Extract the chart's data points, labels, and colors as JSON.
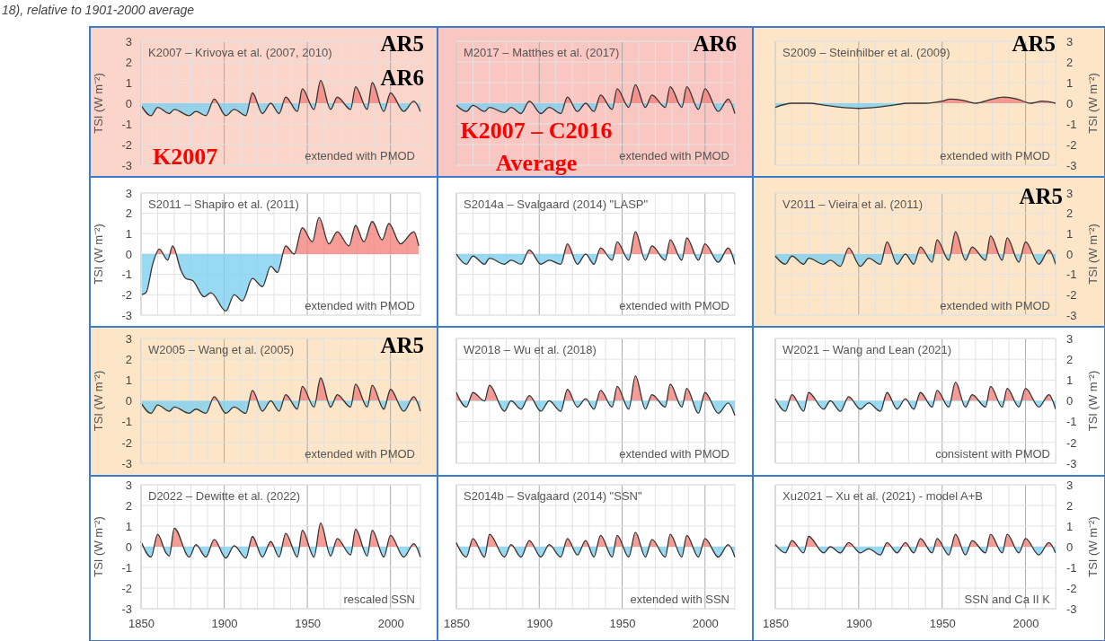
{
  "chart_data": [
    {
      "type": "area",
      "title": "K2007 – Krivova et al. (2007, 2010)",
      "subtitle": "18), relative to 1901-2000 average",
      "ylabel": "TSI (W m⁻²)",
      "annotations": [
        "extended with PMOD",
        "AR5",
        "AR6",
        "K2007"
      ],
      "bands": [
        {
          "axis": "x",
          "from": 1850,
          "to": 2018,
          "color": "#fbd5c9"
        }
      ],
      "x": [
        1850,
        1856,
        1860,
        1867,
        1870,
        1879,
        1883,
        1889,
        1894,
        1901,
        1906,
        1913,
        1917,
        1923,
        1928,
        1933,
        1937,
        1944,
        1947,
        1954,
        1958,
        1964,
        1968,
        1976,
        1979,
        1986,
        1989,
        1996,
        2000,
        2008,
        2014,
        2018
      ],
      "colors": [
        "#f4847e",
        "#7fd0f0"
      ],
      "series": [
        {
          "color": "#333333",
          "values": [
            -0.1,
            -0.6,
            -0.2,
            -0.5,
            -0.3,
            -0.6,
            -0.4,
            -0.6,
            0.2,
            -0.6,
            -0.3,
            -0.6,
            0.5,
            -0.5,
            0.0,
            -0.5,
            0.3,
            -0.4,
            0.7,
            -0.3,
            1.1,
            -0.3,
            0.3,
            -0.3,
            0.8,
            -0.3,
            1.0,
            -0.4,
            0.5,
            -0.4,
            0.1,
            -0.4
          ]
        }
      ],
      "xlim": [
        1850,
        2018
      ],
      "xticks": [
        1850,
        {
          "value": 1860,
          "label": null
        },
        {
          "value": 1870,
          "label": null
        },
        {
          "value": 1880,
          "label": null
        },
        {
          "value": 1890,
          "label": null
        },
        1900,
        {
          "value": 1910,
          "label": null
        },
        {
          "value": 1920,
          "label": null
        },
        {
          "value": 1930,
          "label": null
        },
        {
          "value": 1940,
          "label": null
        },
        1950,
        {
          "value": 1960,
          "label": null
        },
        {
          "value": 1970,
          "label": null
        },
        {
          "value": 1980,
          "label": null
        },
        {
          "value": 1990,
          "label": null
        },
        2000,
        {
          "value": 2010,
          "label": null
        }
      ],
      "ylim": [
        -3,
        3
      ],
      "yticks": [
        -3,
        -2,
        -1,
        0,
        1,
        2,
        3
      ],
      "grid": true,
      "tick_labels": "y"
    },
    {
      "type": "area",
      "title": "M2017 – Matthes et al. (2017)",
      "annotations": [
        "extended with PMOD",
        "AR6",
        "K2007 – C2016 Average"
      ],
      "bands": [
        {
          "axis": "x",
          "from": 1850,
          "to": 2018,
          "color": "#f9c6c2"
        }
      ],
      "x": [
        1850,
        1856,
        1860,
        1867,
        1870,
        1879,
        1883,
        1889,
        1894,
        1901,
        1906,
        1913,
        1917,
        1923,
        1928,
        1933,
        1937,
        1944,
        1947,
        1954,
        1958,
        1964,
        1968,
        1976,
        1979,
        1986,
        1989,
        1996,
        2000,
        2008,
        2014,
        2018
      ],
      "colors": [
        "#f4847e",
        "#7fd0f0"
      ],
      "series": [
        {
          "color": "#333333",
          "values": [
            -0.1,
            -0.4,
            -0.1,
            -0.4,
            -0.2,
            -0.45,
            -0.2,
            -0.5,
            0.1,
            -0.5,
            -0.2,
            -0.5,
            0.3,
            -0.4,
            0.0,
            -0.4,
            0.4,
            -0.3,
            0.7,
            -0.2,
            0.9,
            -0.2,
            0.4,
            -0.2,
            0.8,
            -0.2,
            0.8,
            -0.3,
            0.7,
            -0.4,
            0.2,
            -0.5
          ]
        }
      ],
      "xlim": [
        1850,
        2018
      ],
      "xticks": [
        1850,
        {
          "value": 1860,
          "label": null
        },
        {
          "value": 1870,
          "label": null
        },
        {
          "value": 1880,
          "label": null
        },
        {
          "value": 1890,
          "label": null
        },
        1900,
        {
          "value": 1910,
          "label": null
        },
        {
          "value": 1920,
          "label": null
        },
        {
          "value": 1930,
          "label": null
        },
        {
          "value": 1940,
          "label": null
        },
        1950,
        {
          "value": 1960,
          "label": null
        },
        {
          "value": 1970,
          "label": null
        },
        {
          "value": 1980,
          "label": null
        },
        {
          "value": 1990,
          "label": null
        },
        2000,
        {
          "value": 2010,
          "label": null
        }
      ],
      "ylim": [
        -3,
        3
      ],
      "yticks": [
        -3,
        -2,
        -1,
        0,
        1,
        2,
        3
      ],
      "grid": true,
      "tick_labels": false
    },
    {
      "type": "area",
      "title": "S2009 – Steinhilber et al. (2009)",
      "ylabel": "TSI (W m⁻²)",
      "annotations": [
        "extended with PMOD",
        "AR5"
      ],
      "bands": [
        {
          "axis": "x",
          "from": 1850,
          "to": 2018,
          "color": "#fde6c8"
        }
      ],
      "x": [
        1850,
        1860,
        1870,
        1880,
        1890,
        1900,
        1910,
        1920,
        1930,
        1940,
        1950,
        1955,
        1962,
        1970,
        1980,
        1987,
        1995,
        2003,
        2010,
        2018
      ],
      "colors": [
        "#f4847e",
        "#7fd0f0"
      ],
      "series": [
        {
          "color": "#333333",
          "values": [
            -0.2,
            0.0,
            0.0,
            -0.1,
            -0.2,
            -0.25,
            -0.2,
            -0.1,
            0.0,
            0.0,
            0.1,
            0.2,
            0.15,
            0.0,
            0.2,
            0.3,
            0.2,
            0.0,
            0.1,
            0.0
          ]
        }
      ],
      "xlim": [
        1850,
        2018
      ],
      "xticks": [
        1850,
        {
          "value": 1860,
          "label": null
        },
        {
          "value": 1870,
          "label": null
        },
        {
          "value": 1880,
          "label": null
        },
        {
          "value": 1890,
          "label": null
        },
        1900,
        {
          "value": 1910,
          "label": null
        },
        {
          "value": 1920,
          "label": null
        },
        {
          "value": 1930,
          "label": null
        },
        {
          "value": 1940,
          "label": null
        },
        1950,
        {
          "value": 1960,
          "label": null
        },
        {
          "value": 1970,
          "label": null
        },
        {
          "value": 1980,
          "label": null
        },
        {
          "value": 1990,
          "label": null
        },
        2000,
        {
          "value": 2010,
          "label": null
        }
      ],
      "ylim": [
        -3,
        3
      ],
      "yticks": [
        -3,
        -2,
        -1,
        0,
        1,
        2,
        3
      ],
      "grid": true,
      "tick_labels": "y"
    },
    {
      "type": "area",
      "title": "S2011 – Shapiro et al. (2011)",
      "ylabel": "TSI (W m⁻²)",
      "annotations": [
        "extended with PMOD"
      ],
      "x": [
        1850,
        1853,
        1857,
        1861,
        1866,
        1869,
        1874,
        1877,
        1881,
        1888,
        1892,
        1901,
        1906,
        1911,
        1917,
        1923,
        1928,
        1932,
        1937,
        1942,
        1947,
        1953,
        1957,
        1963,
        1968,
        1975,
        1979,
        1984,
        1989,
        1995,
        1999,
        2006,
        2014,
        2017
      ],
      "colors": [
        "#f4847e",
        "#7fd0f0"
      ],
      "series": [
        {
          "color": "#333333",
          "values": [
            -2.0,
            -1.9,
            -0.5,
            0.25,
            -0.3,
            0.4,
            -0.8,
            -1.2,
            -1.3,
            -2.1,
            -1.9,
            -2.8,
            -2.0,
            -2.3,
            -1.2,
            -1.6,
            -0.6,
            -0.9,
            0.4,
            0.0,
            1.3,
            0.6,
            1.8,
            0.5,
            1.1,
            0.4,
            1.4,
            0.6,
            1.6,
            0.7,
            1.5,
            0.5,
            1.1,
            0.4
          ]
        }
      ],
      "xlim": [
        1850,
        2018
      ],
      "xticks": [
        1850,
        {
          "value": 1860,
          "label": null
        },
        {
          "value": 1870,
          "label": null
        },
        {
          "value": 1880,
          "label": null
        },
        {
          "value": 1890,
          "label": null
        },
        1900,
        {
          "value": 1910,
          "label": null
        },
        {
          "value": 1920,
          "label": null
        },
        {
          "value": 1930,
          "label": null
        },
        {
          "value": 1940,
          "label": null
        },
        1950,
        {
          "value": 1960,
          "label": null
        },
        {
          "value": 1970,
          "label": null
        },
        {
          "value": 1980,
          "label": null
        },
        {
          "value": 1990,
          "label": null
        },
        2000,
        {
          "value": 2010,
          "label": null
        }
      ],
      "ylim": [
        -3,
        3
      ],
      "yticks": [
        -3,
        -2,
        -1,
        0,
        1,
        2,
        3
      ],
      "grid": true,
      "tick_labels": "y"
    },
    {
      "type": "area",
      "title": "S2014a – Svalgaard (2014) \"LASP\"",
      "annotations": [
        "extended with PMOD"
      ],
      "x": [
        1850,
        1856,
        1860,
        1867,
        1870,
        1879,
        1883,
        1889,
        1894,
        1901,
        1906,
        1913,
        1917,
        1923,
        1928,
        1933,
        1937,
        1944,
        1947,
        1954,
        1958,
        1964,
        1968,
        1976,
        1979,
        1986,
        1989,
        1996,
        2000,
        2008,
        2014,
        2018
      ],
      "colors": [
        "#f4847e",
        "#7fd0f0"
      ],
      "series": [
        {
          "color": "#333333",
          "values": [
            0.0,
            -0.5,
            -0.1,
            -0.5,
            -0.2,
            -0.5,
            -0.3,
            -0.5,
            0.2,
            -0.5,
            -0.3,
            -0.5,
            0.5,
            -0.5,
            0.0,
            -0.5,
            0.3,
            -0.3,
            0.6,
            -0.3,
            1.1,
            -0.3,
            0.4,
            -0.3,
            0.7,
            -0.3,
            0.8,
            -0.3,
            0.5,
            -0.4,
            0.3,
            -0.5
          ]
        }
      ],
      "xlim": [
        1850,
        2018
      ],
      "xticks": [
        1850,
        {
          "value": 1860,
          "label": null
        },
        {
          "value": 1870,
          "label": null
        },
        {
          "value": 1880,
          "label": null
        },
        {
          "value": 1890,
          "label": null
        },
        1900,
        {
          "value": 1910,
          "label": null
        },
        {
          "value": 1920,
          "label": null
        },
        {
          "value": 1930,
          "label": null
        },
        {
          "value": 1940,
          "label": null
        },
        1950,
        {
          "value": 1960,
          "label": null
        },
        {
          "value": 1970,
          "label": null
        },
        {
          "value": 1980,
          "label": null
        },
        {
          "value": 1990,
          "label": null
        },
        2000,
        {
          "value": 2010,
          "label": null
        }
      ],
      "ylim": [
        -3,
        3
      ],
      "yticks": [
        -3,
        -2,
        -1,
        0,
        1,
        2,
        3
      ],
      "grid": true,
      "tick_labels": false
    },
    {
      "type": "area",
      "title": "V2011 – Vieira et al. (2011)",
      "ylabel": "TSI (W m⁻²)",
      "annotations": [
        "extended with PMOD",
        "AR5"
      ],
      "bands": [
        {
          "axis": "x",
          "from": 1850,
          "to": 2018,
          "color": "#fde6c8"
        }
      ],
      "x": [
        1850,
        1856,
        1860,
        1867,
        1870,
        1879,
        1883,
        1889,
        1894,
        1901,
        1906,
        1913,
        1917,
        1923,
        1928,
        1933,
        1937,
        1944,
        1947,
        1954,
        1958,
        1964,
        1968,
        1976,
        1979,
        1986,
        1989,
        1996,
        2000,
        2008,
        2014,
        2018
      ],
      "colors": [
        "#f4847e",
        "#7fd0f0"
      ],
      "series": [
        {
          "color": "#333333",
          "values": [
            -0.1,
            -0.5,
            -0.1,
            -0.5,
            -0.2,
            -0.5,
            -0.3,
            -0.6,
            0.3,
            -0.6,
            -0.2,
            -0.5,
            0.6,
            -0.5,
            0.0,
            -0.5,
            0.35,
            -0.4,
            0.7,
            -0.3,
            1.1,
            -0.3,
            0.35,
            -0.3,
            0.9,
            -0.3,
            0.8,
            -0.4,
            0.6,
            -0.5,
            0.2,
            -0.5
          ]
        }
      ],
      "xlim": [
        1850,
        2018
      ],
      "xticks": [
        1850,
        {
          "value": 1860,
          "label": null
        },
        {
          "value": 1870,
          "label": null
        },
        {
          "value": 1880,
          "label": null
        },
        {
          "value": 1890,
          "label": null
        },
        1900,
        {
          "value": 1910,
          "label": null
        },
        {
          "value": 1920,
          "label": null
        },
        {
          "value": 1930,
          "label": null
        },
        {
          "value": 1940,
          "label": null
        },
        1950,
        {
          "value": 1960,
          "label": null
        },
        {
          "value": 1970,
          "label": null
        },
        {
          "value": 1980,
          "label": null
        },
        {
          "value": 1990,
          "label": null
        },
        2000,
        {
          "value": 2010,
          "label": null
        }
      ],
      "ylim": [
        -3,
        3
      ],
      "yticks": [
        -3,
        -2,
        -1,
        0,
        1,
        2,
        3
      ],
      "grid": true,
      "tick_labels": "y"
    },
    {
      "type": "area",
      "title": "W2005 – Wang et al. (2005)",
      "ylabel": "TSI (W m⁻²)",
      "annotations": [
        "extended with PMOD",
        "AR5"
      ],
      "bands": [
        {
          "axis": "x",
          "from": 1850,
          "to": 2018,
          "color": "#fde6c8"
        }
      ],
      "x": [
        1850,
        1856,
        1860,
        1867,
        1870,
        1879,
        1883,
        1889,
        1894,
        1901,
        1906,
        1913,
        1917,
        1923,
        1928,
        1933,
        1937,
        1944,
        1947,
        1954,
        1958,
        1964,
        1968,
        1976,
        1979,
        1986,
        1989,
        1996,
        2000,
        2008,
        2014,
        2018
      ],
      "colors": [
        "#f4847e",
        "#7fd0f0"
      ],
      "series": [
        {
          "color": "#333333",
          "values": [
            -0.1,
            -0.6,
            -0.2,
            -0.5,
            -0.3,
            -0.6,
            -0.4,
            -0.6,
            0.2,
            -0.6,
            -0.3,
            -0.6,
            0.5,
            -0.5,
            0.0,
            -0.5,
            0.3,
            -0.4,
            0.7,
            -0.3,
            1.1,
            -0.3,
            0.3,
            -0.3,
            0.8,
            -0.3,
            0.75,
            -0.4,
            0.55,
            -0.5,
            0.2,
            -0.5
          ]
        }
      ],
      "xlim": [
        1850,
        2018
      ],
      "xticks": [
        1850,
        {
          "value": 1860,
          "label": null
        },
        {
          "value": 1870,
          "label": null
        },
        {
          "value": 1880,
          "label": null
        },
        {
          "value": 1890,
          "label": null
        },
        1900,
        {
          "value": 1910,
          "label": null
        },
        {
          "value": 1920,
          "label": null
        },
        {
          "value": 1930,
          "label": null
        },
        {
          "value": 1940,
          "label": null
        },
        1950,
        {
          "value": 1960,
          "label": null
        },
        {
          "value": 1970,
          "label": null
        },
        {
          "value": 1980,
          "label": null
        },
        {
          "value": 1990,
          "label": null
        },
        2000,
        {
          "value": 2010,
          "label": null
        }
      ],
      "ylim": [
        -3,
        3
      ],
      "yticks": [
        -3,
        -2,
        -1,
        0,
        1,
        2,
        3
      ],
      "grid": true,
      "tick_labels": "y"
    },
    {
      "type": "area",
      "title": "W2018 – Wu et al. (2018)",
      "annotations": [
        "extended with PMOD"
      ],
      "x": [
        1850,
        1856,
        1860,
        1867,
        1870,
        1879,
        1883,
        1889,
        1894,
        1901,
        1906,
        1913,
        1917,
        1923,
        1928,
        1933,
        1937,
        1944,
        1947,
        1954,
        1958,
        1964,
        1968,
        1976,
        1979,
        1986,
        1989,
        1996,
        2000,
        2008,
        2014,
        2018
      ],
      "colors": [
        "#f4847e",
        "#7fd0f0"
      ],
      "series": [
        {
          "color": "#333333",
          "values": [
            0.4,
            -0.3,
            0.4,
            0.0,
            0.75,
            -0.5,
            0.0,
            -0.4,
            0.25,
            -0.5,
            0.0,
            -0.5,
            0.55,
            -0.3,
            0.1,
            -0.4,
            0.5,
            -0.3,
            0.7,
            -0.4,
            1.2,
            -0.4,
            0.3,
            -0.3,
            0.8,
            -0.3,
            0.6,
            -0.6,
            0.4,
            -0.6,
            -0.1,
            -0.7
          ]
        }
      ],
      "xlim": [
        1850,
        2018
      ],
      "xticks": [
        1850,
        {
          "value": 1860,
          "label": null
        },
        {
          "value": 1870,
          "label": null
        },
        {
          "value": 1880,
          "label": null
        },
        {
          "value": 1890,
          "label": null
        },
        1900,
        {
          "value": 1910,
          "label": null
        },
        {
          "value": 1920,
          "label": null
        },
        {
          "value": 1930,
          "label": null
        },
        {
          "value": 1940,
          "label": null
        },
        1950,
        {
          "value": 1960,
          "label": null
        },
        {
          "value": 1970,
          "label": null
        },
        {
          "value": 1980,
          "label": null
        },
        {
          "value": 1990,
          "label": null
        },
        2000,
        {
          "value": 2010,
          "label": null
        }
      ],
      "ylim": [
        -3,
        3
      ],
      "yticks": [
        -3,
        -2,
        -1,
        0,
        1,
        2,
        3
      ],
      "grid": true,
      "tick_labels": false
    },
    {
      "type": "area",
      "title": "W2021 – Wang and Lean (2021)",
      "ylabel": "TSI (W m⁻²)",
      "annotations": [
        "consistent with PMOD"
      ],
      "x": [
        1850,
        1856,
        1860,
        1867,
        1870,
        1879,
        1883,
        1889,
        1894,
        1901,
        1906,
        1913,
        1917,
        1923,
        1928,
        1933,
        1937,
        1944,
        1947,
        1954,
        1958,
        1964,
        1968,
        1976,
        1979,
        1986,
        1989,
        1996,
        2000,
        2008,
        2014,
        2018
      ],
      "colors": [
        "#f4847e",
        "#7fd0f0"
      ],
      "series": [
        {
          "color": "#333333",
          "values": [
            0.1,
            -0.5,
            0.3,
            -0.5,
            0.4,
            -0.4,
            0.0,
            -0.5,
            0.2,
            -0.4,
            -0.1,
            -0.5,
            0.4,
            -0.4,
            0.1,
            -0.4,
            0.4,
            -0.3,
            0.5,
            -0.3,
            0.9,
            -0.3,
            0.3,
            -0.3,
            0.7,
            -0.3,
            0.6,
            -0.3,
            0.6,
            -0.3,
            0.3,
            -0.4
          ]
        }
      ],
      "xlim": [
        1850,
        2018
      ],
      "xticks": [
        1850,
        {
          "value": 1860,
          "label": null
        },
        {
          "value": 1870,
          "label": null
        },
        {
          "value": 1880,
          "label": null
        },
        {
          "value": 1890,
          "label": null
        },
        1900,
        {
          "value": 1910,
          "label": null
        },
        {
          "value": 1920,
          "label": null
        },
        {
          "value": 1930,
          "label": null
        },
        {
          "value": 1940,
          "label": null
        },
        1950,
        {
          "value": 1960,
          "label": null
        },
        {
          "value": 1970,
          "label": null
        },
        {
          "value": 1980,
          "label": null
        },
        {
          "value": 1990,
          "label": null
        },
        2000,
        {
          "value": 2010,
          "label": null
        }
      ],
      "ylim": [
        -3,
        3
      ],
      "yticks": [
        -3,
        -2,
        -1,
        0,
        1,
        2,
        3
      ],
      "grid": true,
      "tick_labels": "y"
    },
    {
      "type": "area",
      "title": "D2022 – Dewitte et al. (2022)",
      "ylabel": "TSI (W m⁻²)",
      "annotations": [
        "rescaled SSN"
      ],
      "x": [
        1850,
        1856,
        1860,
        1865,
        1867,
        1870,
        1879,
        1883,
        1889,
        1894,
        1901,
        1906,
        1913,
        1917,
        1923,
        1928,
        1933,
        1937,
        1944,
        1947,
        1954,
        1958,
        1964,
        1968,
        1976,
        1979,
        1986,
        1989,
        1996,
        2000,
        2008,
        2014,
        2018
      ],
      "colors": [
        "#f4847e",
        "#7fd0f0"
      ],
      "series": [
        {
          "color": "#333333",
          "values": [
            0.25,
            -0.5,
            0.6,
            -0.3,
            -0.45,
            0.9,
            -0.5,
            0.1,
            -0.5,
            0.35,
            -0.55,
            0.05,
            -0.55,
            0.5,
            -0.5,
            0.25,
            -0.5,
            0.65,
            -0.5,
            0.8,
            -0.5,
            1.15,
            -0.45,
            0.4,
            -0.4,
            0.85,
            -0.45,
            0.8,
            -0.5,
            0.55,
            -0.5,
            0.15,
            -0.5
          ]
        }
      ],
      "xlim": [
        1850,
        2018
      ],
      "xticks": [
        1850,
        {
          "value": 1860,
          "label": null
        },
        {
          "value": 1870,
          "label": null
        },
        {
          "value": 1880,
          "label": null
        },
        {
          "value": 1890,
          "label": null
        },
        1900,
        {
          "value": 1910,
          "label": null
        },
        {
          "value": 1920,
          "label": null
        },
        {
          "value": 1930,
          "label": null
        },
        {
          "value": 1940,
          "label": null
        },
        1950,
        {
          "value": 1960,
          "label": null
        },
        {
          "value": 1970,
          "label": null
        },
        {
          "value": 1980,
          "label": null
        },
        {
          "value": 1990,
          "label": null
        },
        2000,
        {
          "value": 2010,
          "label": null
        }
      ],
      "ylim": [
        -3,
        3
      ],
      "yticks": [
        -3,
        -2,
        -1,
        0,
        1,
        2,
        3
      ],
      "grid": true
    },
    {
      "type": "area",
      "title": "S2014b – Svalgaard (2014) \"SSN\"",
      "annotations": [
        "extended with SSN"
      ],
      "x": [
        1850,
        1856,
        1860,
        1867,
        1870,
        1879,
        1883,
        1889,
        1894,
        1901,
        1906,
        1913,
        1917,
        1923,
        1928,
        1933,
        1937,
        1944,
        1947,
        1954,
        1958,
        1964,
        1968,
        1976,
        1979,
        1986,
        1989,
        1996,
        2000,
        2008,
        2014,
        2018
      ],
      "colors": [
        "#f4847e",
        "#7fd0f0"
      ],
      "series": [
        {
          "color": "#333333",
          "values": [
            0.2,
            -0.5,
            0.4,
            -0.5,
            0.6,
            -0.5,
            0.1,
            -0.5,
            0.3,
            -0.5,
            0.1,
            -0.5,
            0.4,
            -0.4,
            0.3,
            -0.5,
            0.55,
            -0.5,
            0.55,
            -0.5,
            0.7,
            -0.5,
            0.35,
            -0.5,
            0.6,
            -0.5,
            0.55,
            -0.5,
            0.4,
            -0.5,
            0.1,
            -0.5
          ]
        }
      ],
      "xlim": [
        1850,
        2018
      ],
      "xticks": [
        1850,
        {
          "value": 1860,
          "label": null
        },
        {
          "value": 1870,
          "label": null
        },
        {
          "value": 1880,
          "label": null
        },
        {
          "value": 1890,
          "label": null
        },
        1900,
        {
          "value": 1910,
          "label": null
        },
        {
          "value": 1920,
          "label": null
        },
        {
          "value": 1930,
          "label": null
        },
        {
          "value": 1940,
          "label": null
        },
        1950,
        {
          "value": 1960,
          "label": null
        },
        {
          "value": 1970,
          "label": null
        },
        {
          "value": 1980,
          "label": null
        },
        {
          "value": 1990,
          "label": null
        },
        2000,
        {
          "value": 2010,
          "label": null
        }
      ],
      "ylim": [
        -3,
        3
      ],
      "yticks": [
        -3,
        -2,
        -1,
        0,
        1,
        2,
        3
      ],
      "grid": true,
      "tick_labels": "x"
    },
    {
      "type": "area",
      "title": "Xu2021 – Xu et al. (2021) - model A+B",
      "ylabel": "TSI (W m⁻²)",
      "annotations": [
        "SSN and Ca II K"
      ],
      "x": [
        1850,
        1856,
        1860,
        1867,
        1870,
        1879,
        1883,
        1889,
        1894,
        1901,
        1906,
        1913,
        1917,
        1923,
        1928,
        1933,
        1937,
        1944,
        1947,
        1954,
        1958,
        1964,
        1968,
        1976,
        1979,
        1986,
        1989,
        1996,
        2000,
        2008,
        2014,
        2018
      ],
      "colors": [
        "#f4847e",
        "#7fd0f0"
      ],
      "series": [
        {
          "color": "#333333",
          "values": [
            0.1,
            -0.3,
            0.3,
            -0.3,
            0.5,
            -0.3,
            0.0,
            -0.3,
            0.2,
            -0.3,
            -0.1,
            -0.4,
            0.2,
            -0.3,
            0.2,
            -0.3,
            0.4,
            -0.3,
            0.4,
            -0.4,
            0.6,
            -0.4,
            0.3,
            -0.3,
            0.6,
            -0.3,
            0.6,
            -0.3,
            0.4,
            -0.4,
            0.2,
            -0.3
          ]
        }
      ],
      "xlim": [
        1850,
        2018
      ],
      "xticks": [
        1850,
        {
          "value": 1860,
          "label": null
        },
        {
          "value": 1870,
          "label": null
        },
        {
          "value": 1880,
          "label": null
        },
        {
          "value": 1890,
          "label": null
        },
        1900,
        {
          "value": 1910,
          "label": null
        },
        {
          "value": 1920,
          "label": null
        },
        {
          "value": 1930,
          "label": null
        },
        {
          "value": 1940,
          "label": null
        },
        1950,
        {
          "value": 1960,
          "label": null
        },
        {
          "value": 1970,
          "label": null
        },
        {
          "value": 1980,
          "label": null
        },
        {
          "value": 1990,
          "label": null
        },
        2000,
        {
          "value": 2010,
          "label": null
        }
      ],
      "ylim": [
        -3,
        3
      ],
      "yticks": [
        -3,
        -2,
        -1,
        0,
        1,
        2,
        3
      ],
      "grid": true
    }
  ]
}
